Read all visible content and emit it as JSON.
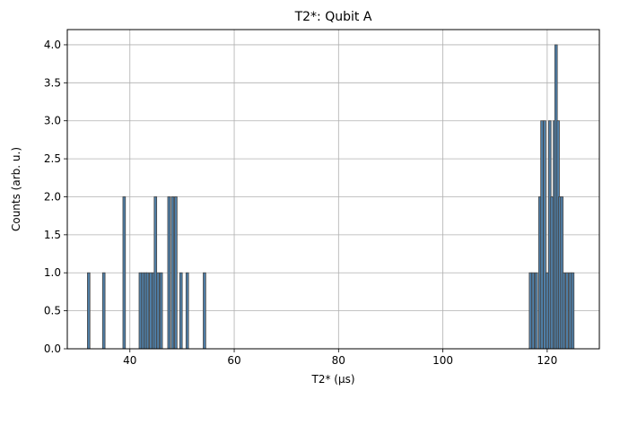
{
  "chart_data": {
    "type": "bar",
    "title": "T2*: Qubit A",
    "xlabel": "T2* (μs)",
    "ylabel": "Counts (arb. u.)",
    "xlim": [
      28,
      130
    ],
    "ylim": [
      0,
      4.2
    ],
    "xticks": [
      40,
      60,
      80,
      100,
      120
    ],
    "yticks": [
      0.0,
      0.5,
      1.0,
      1.5,
      2.0,
      2.5,
      3.0,
      3.5,
      4.0
    ],
    "ytick_labels": [
      "0.0",
      "0.5",
      "1.0",
      "1.5",
      "2.0",
      "2.5",
      "3.0",
      "3.5",
      "4.0"
    ],
    "grid": true,
    "bar_width": 0.48,
    "bar_color": "#4f7fa8",
    "bar_edge_color": "#444444",
    "x": [
      32.1,
      35.0,
      38.9,
      42.0,
      42.5,
      43.0,
      43.4,
      44.0,
      44.5,
      44.9,
      45.4,
      46.0,
      47.5,
      48.2,
      48.8,
      49.8,
      51.0,
      54.3,
      116.8,
      117.3,
      117.9,
      118.6,
      119.0,
      119.5,
      120.0,
      120.5,
      120.9,
      121.4,
      121.7,
      122.1,
      122.4,
      122.8,
      123.2,
      123.8,
      124.4,
      124.9
    ],
    "values": [
      1,
      1,
      2,
      1,
      1,
      1,
      1,
      1,
      1,
      2,
      1,
      1,
      2,
      2,
      2,
      1,
      1,
      1,
      1,
      1,
      1,
      2,
      3,
      3,
      1,
      3,
      2,
      3,
      4,
      3,
      2,
      2,
      1,
      1,
      1,
      1
    ]
  }
}
